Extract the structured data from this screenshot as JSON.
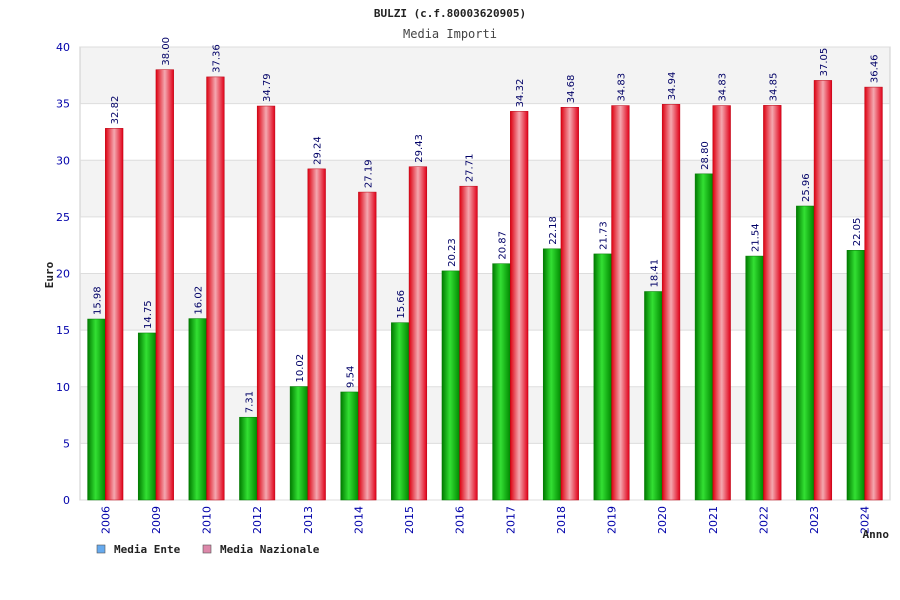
{
  "chart_data": {
    "type": "bar",
    "title": "BULZI (c.f.80003620905)",
    "subtitle": "Media Importi",
    "xlabel": "Anno",
    "ylabel": "Euro",
    "ylim": [
      0,
      40
    ],
    "yticks": [
      0,
      5,
      10,
      15,
      20,
      25,
      30,
      35,
      40
    ],
    "grid": true,
    "legend_position": "bottom-left",
    "categories": [
      "2006",
      "2009",
      "2010",
      "2012",
      "2013",
      "2014",
      "2015",
      "2016",
      "2017",
      "2018",
      "2019",
      "2020",
      "2021",
      "2022",
      "2023",
      "2024"
    ],
    "series": [
      {
        "name": "Media Ente",
        "color": "#00bb00",
        "legend_color": "#66aaee",
        "values": [
          15.98,
          14.75,
          16.02,
          7.31,
          10.02,
          9.54,
          15.66,
          20.23,
          20.87,
          22.18,
          21.73,
          18.41,
          28.8,
          21.54,
          25.96,
          22.05
        ],
        "labels": [
          "15.98",
          "14.75",
          "16.02",
          "7.31",
          "10.02",
          "9.54",
          "15.66",
          "20.23",
          "20.87",
          "22.18",
          "21.73",
          "18.41",
          "28.80",
          "21.54",
          "25.96",
          "22.05"
        ]
      },
      {
        "name": "Media Nazionale",
        "color": "#ee1122",
        "legend_color": "#dd88aa",
        "values": [
          32.82,
          38.0,
          37.36,
          34.79,
          29.24,
          27.19,
          29.43,
          27.71,
          34.32,
          34.68,
          34.83,
          34.94,
          34.83,
          34.85,
          37.05,
          36.46
        ],
        "labels": [
          "32.82",
          "38.00",
          "37.36",
          "34.79",
          "29.24",
          "27.19",
          "29.43",
          "27.71",
          "34.32",
          "34.68",
          "34.83",
          "34.94",
          "34.83",
          "34.85",
          "37.05",
          "36.46"
        ]
      }
    ]
  }
}
